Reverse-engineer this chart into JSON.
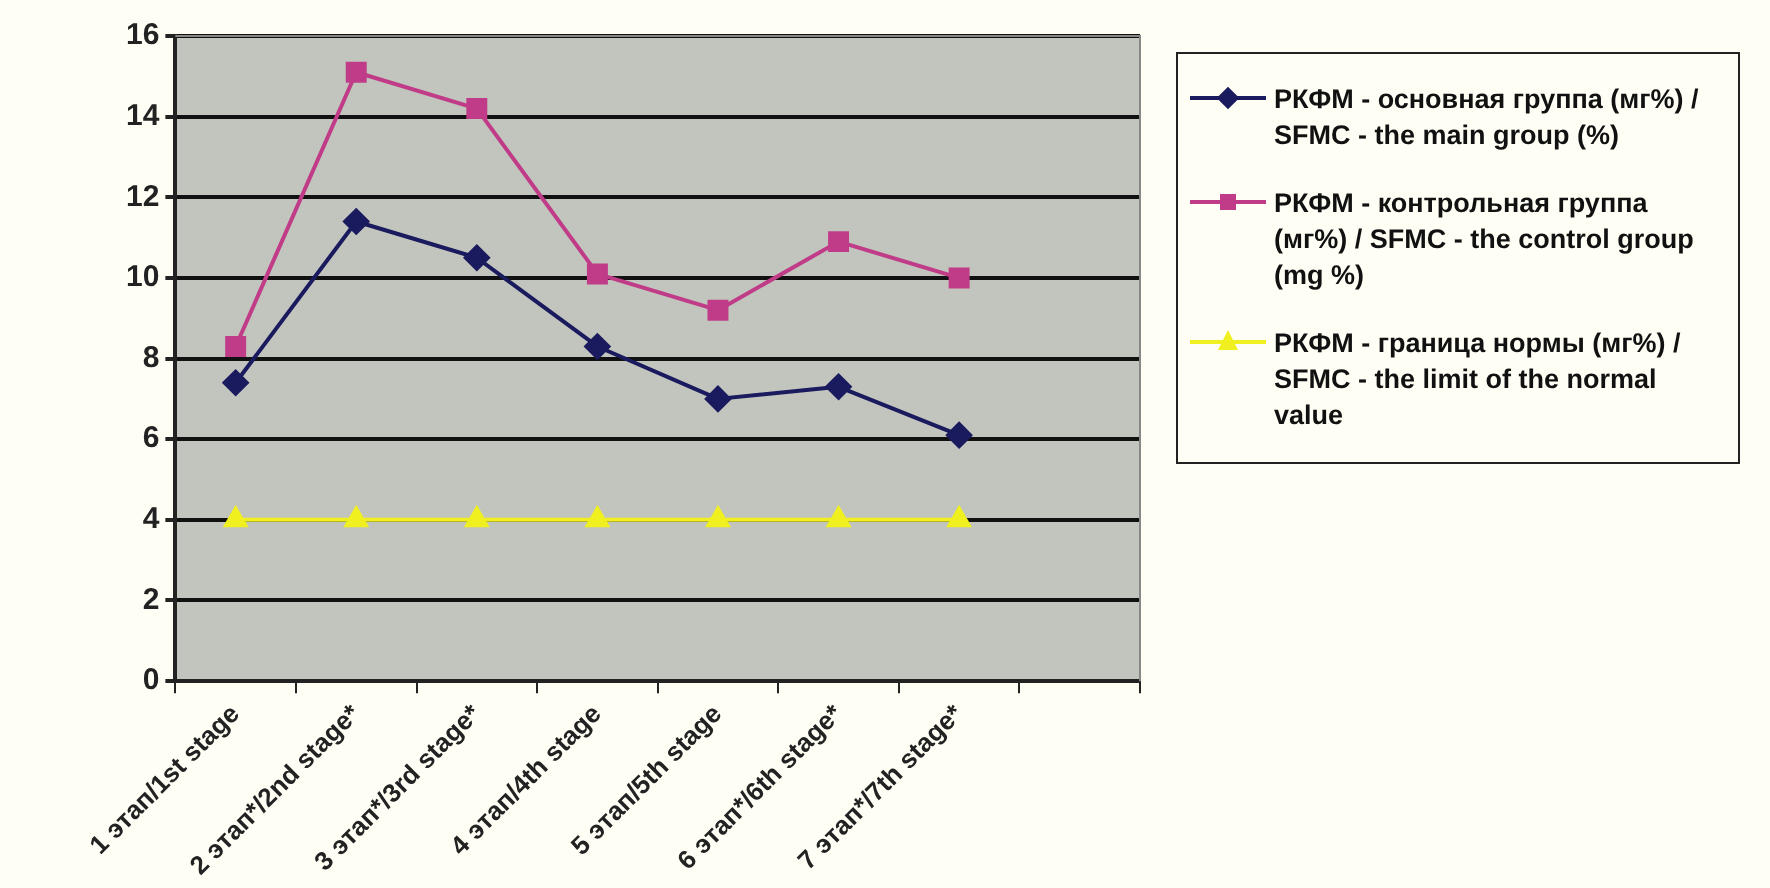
{
  "chart_data": {
    "type": "line",
    "categories": [
      "1 этап/1st stage",
      "2 этап*/2nd stage*",
      "3 этап*/3rd stage*",
      "4 этап/4th stage",
      "5 этап/5th stage",
      "6 этап*/6th stage*",
      "7 этап*/7th stage*",
      null
    ],
    "series": [
      {
        "name": "РКФМ - основная группа (мг%) / SFMC - the main group (%)",
        "color": "#1a1a5e",
        "marker": "diamond",
        "values": [
          7.4,
          11.4,
          10.5,
          8.3,
          7.0,
          7.3,
          6.1,
          null
        ]
      },
      {
        "name": "РКФМ - контрольная группа (мг%) / SFMC - the control group (mg %)",
        "color": "#c03c88",
        "marker": "square",
        "values": [
          8.3,
          15.1,
          14.2,
          10.1,
          9.2,
          10.9,
          10.0,
          null
        ]
      },
      {
        "name": "РКФМ - граница нормы (мг%) / SFMC - the limit of the normal value",
        "color": "#f0f020",
        "marker": "triangle",
        "values": [
          4,
          4,
          4,
          4,
          4,
          4,
          4,
          null
        ]
      }
    ],
    "ylim": [
      0,
      16
    ],
    "yticks": [
      0,
      2,
      4,
      6,
      8,
      10,
      12,
      14,
      16
    ],
    "grid": "y",
    "legend": "right"
  }
}
